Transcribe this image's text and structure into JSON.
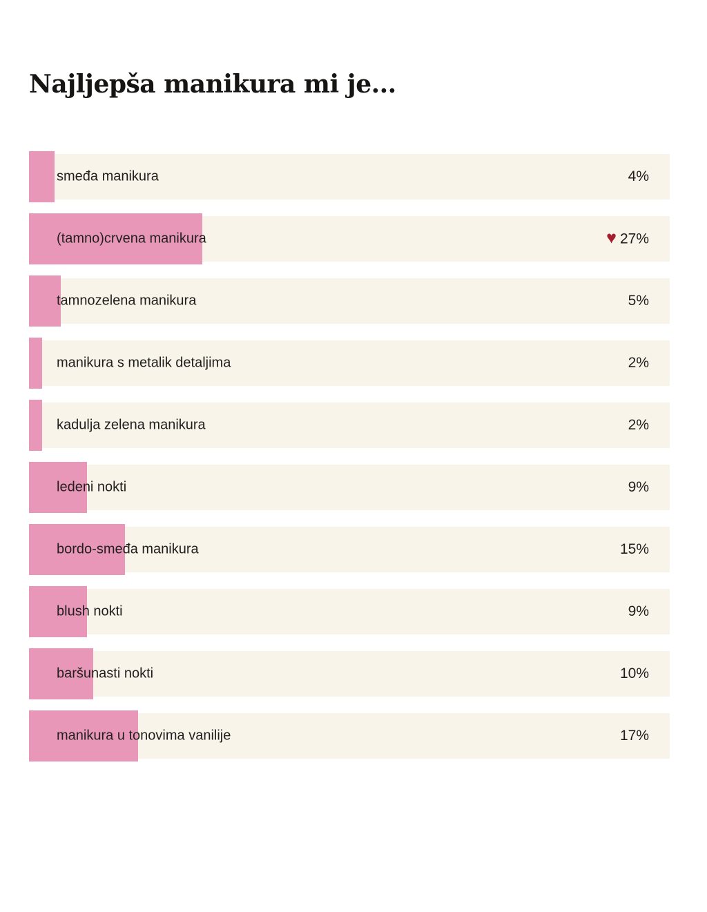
{
  "poll": {
    "title": "Najljepša manikura mi je...",
    "rows": [
      {
        "label": "smeđa manikura",
        "percent": 4,
        "value_label": "4%",
        "heart": false
      },
      {
        "label": "(tamno)crvena manikura",
        "percent": 27,
        "value_label": "27%",
        "heart": true
      },
      {
        "label": "tamnozelena manikura",
        "percent": 5,
        "value_label": "5%",
        "heart": false
      },
      {
        "label": "manikura s metalik detaljima",
        "percent": 2,
        "value_label": "2%",
        "heart": false
      },
      {
        "label": "kadulja zelena manikura",
        "percent": 2,
        "value_label": "2%",
        "heart": false
      },
      {
        "label": "ledeni nokti",
        "percent": 9,
        "value_label": "9%",
        "heart": false
      },
      {
        "label": "bordo-smeđa manikura",
        "percent": 15,
        "value_label": "15%",
        "heart": false
      },
      {
        "label": "blush nokti",
        "percent": 9,
        "value_label": "9%",
        "heart": false
      },
      {
        "label": "baršunasti nokti",
        "percent": 10,
        "value_label": "10%",
        "heart": false
      },
      {
        "label": "manikura u tonovima vanilije",
        "percent": 17,
        "value_label": "17%",
        "heart": false
      }
    ]
  },
  "icons": {
    "heart": "♥"
  },
  "colors": {
    "bar_pink": "#e897b8",
    "row_cream": "#f8f4e9",
    "text": "#211f1d",
    "title": "#161513",
    "heart_red": "#a51e2d",
    "page_background": "#ffffff"
  },
  "chart_data": {
    "type": "bar",
    "orientation": "horizontal",
    "title": "Najljepša manikura mi je...",
    "categories": [
      "smeđa manikura",
      "(tamno)crvena manikura",
      "tamnozelena manikura",
      "manikura s metalik detaljima",
      "kadulja zelena manikura",
      "ledeni nokti",
      "bordo-smeđa manikura",
      "blush nokti",
      "baršunasti nokti",
      "manikura u tonovima vanilije"
    ],
    "values": [
      4,
      27,
      5,
      2,
      2,
      9,
      15,
      9,
      10,
      17
    ],
    "unit": "%",
    "xlim": [
      0,
      100
    ],
    "data_labels": [
      "4%",
      "27%",
      "5%",
      "2%",
      "2%",
      "9%",
      "15%",
      "9%",
      "10%",
      "17%"
    ],
    "annotations": [
      {
        "category": "(tamno)crvena manikura",
        "marker": "heart-icon",
        "value": 27
      }
    ],
    "legend": "none",
    "grid": false
  }
}
